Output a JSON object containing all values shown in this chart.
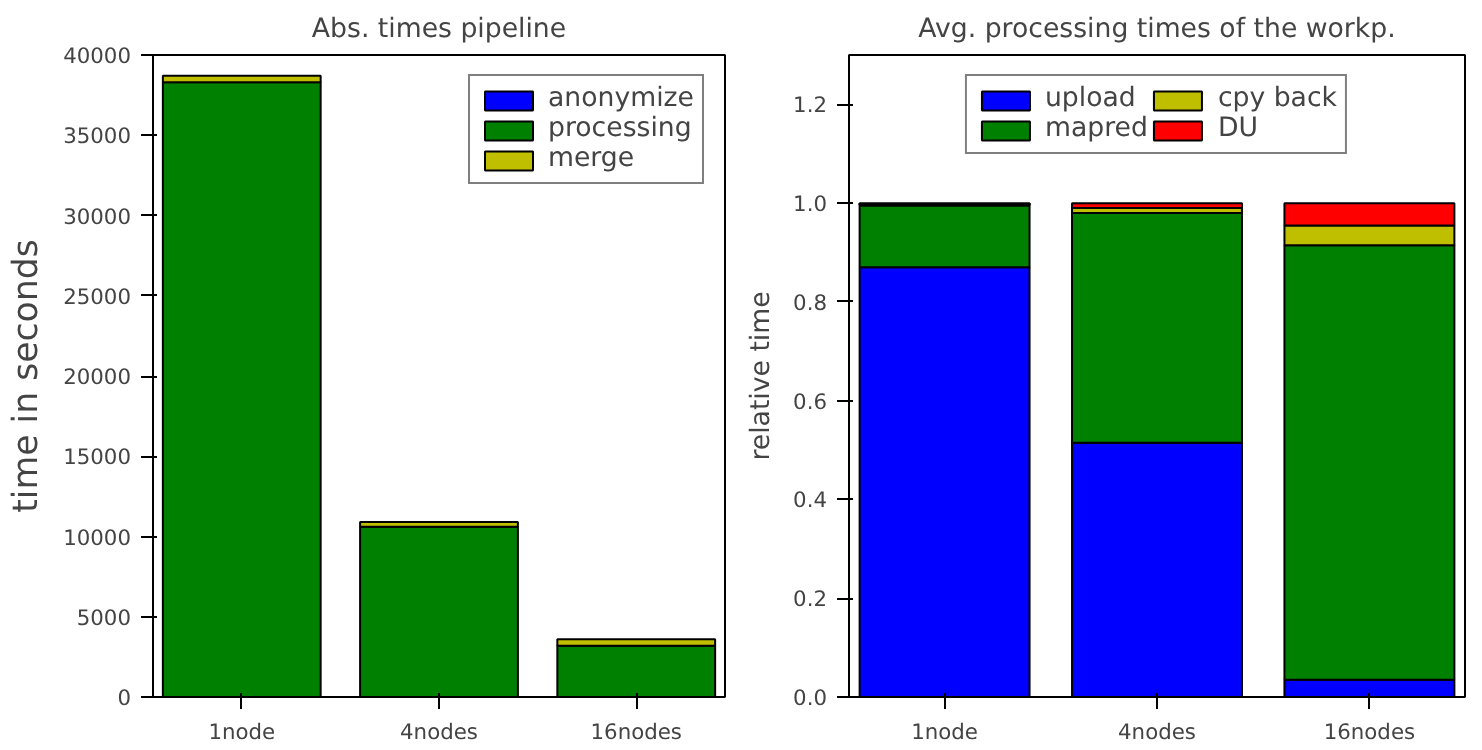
{
  "chart_data": [
    {
      "type": "bar",
      "title": "Abs. times pipeline",
      "ylabel": "time in seconds",
      "categories": [
        "1node",
        "4nodes",
        "16nodes"
      ],
      "stacked": true,
      "ylim": [
        0,
        40000
      ],
      "yticks": [
        0,
        5000,
        10000,
        15000,
        20000,
        25000,
        30000,
        35000,
        40000
      ],
      "legend": "top right",
      "grid": false,
      "series": [
        {
          "name": "anonymize",
          "color": "#0000ff",
          "values": [
            null,
            null,
            null
          ]
        },
        {
          "name": "processing",
          "color": "#008000",
          "values": [
            38300,
            10600,
            3200
          ]
        },
        {
          "name": "merge",
          "color": "#bfbf00",
          "values": [
            400,
            300,
            400
          ]
        }
      ]
    },
    {
      "type": "bar",
      "title": "Avg. processing times of the workp.",
      "ylabel": "relative time",
      "categories": [
        "1node",
        "4nodes",
        "16nodes"
      ],
      "stacked": true,
      "ylim": [
        0,
        1.3
      ],
      "yticks": [
        {
          "value": 0,
          "label": "0.0"
        },
        {
          "value": 0.2,
          "label": "0.2"
        },
        {
          "value": 0.4,
          "label": "0.4"
        },
        {
          "value": 0.6,
          "label": "0.6"
        },
        {
          "value": 0.8,
          "label": "0.8"
        },
        {
          "value": 1.0,
          "label": "1.0"
        },
        {
          "value": 1.2,
          "label": "1.2"
        }
      ],
      "legend": "top",
      "grid": false,
      "series": [
        {
          "name": "upload",
          "color": "#0000ff",
          "values": [
            0.87,
            0.515,
            0.035
          ]
        },
        {
          "name": "mapred",
          "color": "#008000",
          "values": [
            0.125,
            0.465,
            0.88
          ]
        },
        {
          "name": "cpy back",
          "color": "#bfbf00",
          "values": [
            0.003,
            0.01,
            0.04
          ]
        },
        {
          "name": "DU",
          "color": "#ff0000",
          "values": [
            0.002,
            0.01,
            0.045
          ]
        }
      ]
    }
  ]
}
